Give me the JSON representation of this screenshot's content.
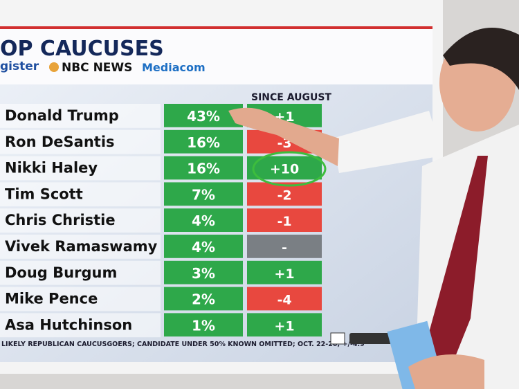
{
  "header": {
    "title": "OP CAUCUSES",
    "sponsors": [
      "gister",
      "NBC NEWS",
      "Mediacom"
    ]
  },
  "table": {
    "column_header": "SINCE AUGUST",
    "rows": [
      [
        "Donald Trump",
        "43%",
        "+1"
      ],
      [
        "Ron DeSantis",
        "16%",
        "-3"
      ],
      [
        "Nikki Haley",
        "16%",
        "+10"
      ],
      [
        "Tim Scott",
        "7%",
        "-2"
      ],
      [
        "Chris Christie",
        "4%",
        "-1"
      ],
      [
        "Vivek Ramaswamy",
        "4%",
        "-"
      ],
      [
        "Doug Burgum",
        "3%",
        "+1"
      ],
      [
        "Mike Pence",
        "2%",
        "-4"
      ],
      [
        "Asa Hutchinson",
        "1%",
        "+1"
      ]
    ]
  },
  "footer": "LIKELY REPUBLICAN CAUCUSGOERS; CANDIDATE UNDER 50% KNOWN OMITTED; OCT. 22-26; +/-4.9"
}
